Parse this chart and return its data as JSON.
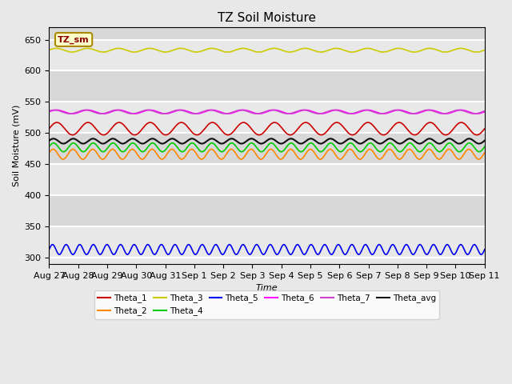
{
  "title": "TZ Soil Moisture",
  "ylabel": "Soil Moisture (mV)",
  "xlabel": "Time",
  "background_color": "#e8e8e8",
  "plot_bg_color": "#e8e8e8",
  "ylim": [
    290,
    670
  ],
  "yticks": [
    300,
    350,
    400,
    450,
    500,
    550,
    600,
    650
  ],
  "num_points": 2160,
  "num_days": 15,
  "series": {
    "Theta_1": {
      "color": "#cc0000",
      "base": 507,
      "amp": 10,
      "freq": 14,
      "phase": 0.0,
      "lw": 1.2
    },
    "Theta_2": {
      "color": "#ff8800",
      "base": 466,
      "amp": 8,
      "freq": 22,
      "phase": 0.3,
      "lw": 1.2
    },
    "Theta_3": {
      "color": "#cccc00",
      "base": 633,
      "amp": 3,
      "freq": 14,
      "phase": 0.1,
      "lw": 1.2
    },
    "Theta_4": {
      "color": "#00cc00",
      "base": 477,
      "amp": 7,
      "freq": 22,
      "phase": 0.15,
      "lw": 1.2
    },
    "Theta_5": {
      "color": "#0000ee",
      "base": 313,
      "amp": 8,
      "freq": 32,
      "phase": 0.0,
      "lw": 1.2
    },
    "Theta_6": {
      "color": "#ff00ff",
      "base": 534,
      "amp": 3,
      "freq": 14,
      "phase": 0.05,
      "lw": 1.2
    },
    "Theta_7": {
      "color": "#cc44cc",
      "base": 534,
      "amp": 3,
      "freq": 14,
      "phase": 0.5,
      "lw": 1.2
    },
    "Theta_avg": {
      "color": "#111111",
      "base": 487,
      "amp": 4,
      "freq": 22,
      "phase": 0.2,
      "lw": 1.5
    }
  },
  "legend_box": {
    "text": "TZ_sm",
    "text_color": "#880000",
    "bg_color": "#ffffcc",
    "border_color": "#aa8800"
  },
  "xtick_labels": [
    "Aug 27",
    "Aug 28",
    "Aug 29",
    "Aug 30",
    "Aug 31",
    "Sep 1",
    "Sep 2",
    "Sep 3",
    "Sep 4",
    "Sep 5",
    "Sep 6",
    "Sep 7",
    "Sep 8",
    "Sep 9",
    "Sep 10",
    "Sep 11"
  ]
}
